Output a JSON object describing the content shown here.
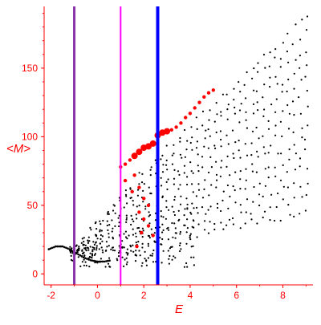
{
  "colors": {
    "axis": "#ff0000",
    "tick_label": "#ff0000",
    "points_black": "#000000",
    "points_red": "#ff0000",
    "line_purple": "#8833aa",
    "line_magenta": "#ff00ff",
    "line_blue": "#0000ff"
  },
  "chart_data": {
    "type": "scatter",
    "title": "",
    "xlabel": "E",
    "ylabel": "<M>",
    "xlim": [
      -2.3,
      9.3
    ],
    "ylim": [
      -8,
      195
    ],
    "xticks": [
      -2,
      0,
      2,
      4,
      6,
      8
    ],
    "yticks": [
      0,
      50,
      100,
      150
    ],
    "grid": false,
    "legend": "none",
    "vertical_lines": [
      {
        "x": -1.0,
        "color": "#8833aa",
        "width": 3
      },
      {
        "x": 1.0,
        "color": "#ff00ff",
        "width": 2
      },
      {
        "x": 2.6,
        "color": "#0000ff",
        "width": 4
      }
    ],
    "band_model": {
      "x_range": [
        -1.2,
        9.2
      ],
      "upper_envelope": "M ≈ 20 + 19.5·(E+1)^0.93",
      "points_per_band": 40
    },
    "low_arc_black": [
      [
        -2.1,
        18
      ],
      [
        -1.8,
        20
      ],
      [
        -1.5,
        20
      ],
      [
        -1.2,
        18
      ],
      [
        -0.9,
        15
      ],
      [
        -0.6,
        12
      ],
      [
        -0.3,
        10
      ],
      [
        0.0,
        9
      ],
      [
        0.3,
        9
      ],
      [
        0.6,
        10
      ]
    ],
    "red_points": [
      [
        1.0,
        78
      ],
      [
        1.2,
        80
      ],
      [
        1.4,
        83
      ],
      [
        1.6,
        86
      ],
      [
        1.8,
        89
      ],
      [
        2.0,
        92
      ],
      [
        2.2,
        93
      ],
      [
        2.4,
        95
      ],
      [
        2.6,
        101
      ],
      [
        2.8,
        103
      ],
      [
        3.0,
        104
      ],
      [
        3.2,
        105
      ],
      [
        3.4,
        107
      ],
      [
        3.6,
        110
      ],
      [
        3.8,
        114
      ],
      [
        4.0,
        117
      ],
      [
        4.2,
        121
      ],
      [
        4.4,
        125
      ],
      [
        4.6,
        129
      ],
      [
        4.8,
        132
      ],
      [
        5.0,
        134
      ],
      [
        1.2,
        68
      ],
      [
        1.6,
        72
      ],
      [
        1.8,
        63
      ],
      [
        1.5,
        60
      ],
      [
        2.0,
        55
      ],
      [
        2.2,
        50
      ],
      [
        1.8,
        45
      ],
      [
        2.0,
        40
      ],
      [
        2.2,
        35
      ],
      [
        1.9,
        30
      ],
      [
        2.4,
        28
      ],
      [
        2.6,
        24
      ],
      [
        1.7,
        20
      ]
    ]
  }
}
